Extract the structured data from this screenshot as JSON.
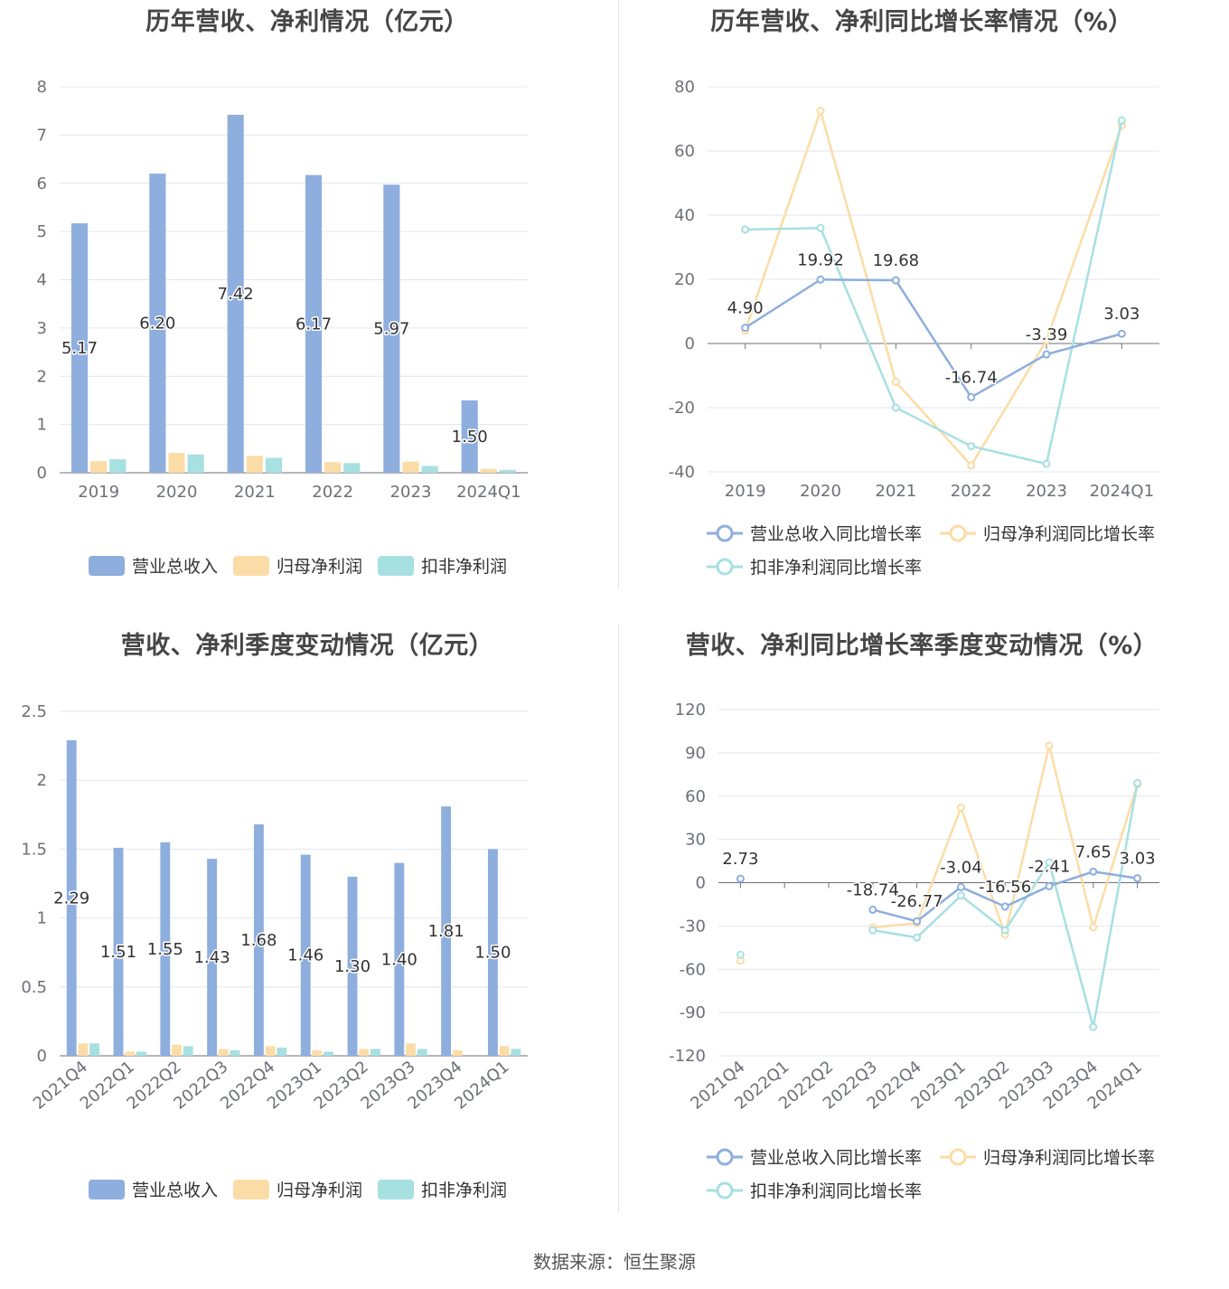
{
  "footer": "数据来源：恒生聚源",
  "colors": {
    "revenue": "#8eaedd",
    "parent": "#fcdca6",
    "deducted": "#a7e0e1"
  },
  "chart_data": [
    {
      "id": "annual_values",
      "type": "bar",
      "title": "历年营收、净利情况（亿元）",
      "categories": [
        "2019",
        "2020",
        "2021",
        "2022",
        "2023",
        "2024Q1"
      ],
      "ylim": [
        0,
        8
      ],
      "yticks": [
        0,
        1,
        2,
        3,
        4,
        5,
        6,
        7,
        8
      ],
      "grid": true,
      "legend_position": "bottom",
      "series": [
        {
          "name": "营业总收入",
          "color": "#8eaedd",
          "values": [
            5.17,
            6.2,
            7.42,
            6.17,
            5.97,
            1.5
          ],
          "labels": [
            "5.17",
            "6.20",
            "7.42",
            "6.17",
            "5.97",
            "1.50"
          ]
        },
        {
          "name": "归母净利润",
          "color": "#fcdca6",
          "values": [
            0.24,
            0.41,
            0.35,
            0.22,
            0.23,
            0.08
          ]
        },
        {
          "name": "扣非净利润",
          "color": "#a7e0e1",
          "values": [
            0.28,
            0.38,
            0.31,
            0.2,
            0.14,
            0.06
          ]
        }
      ]
    },
    {
      "id": "annual_growth",
      "type": "line",
      "title": "历年营收、净利同比增长率情况（%）",
      "categories": [
        "2019",
        "2020",
        "2021",
        "2022",
        "2023",
        "2024Q1"
      ],
      "ylim": [
        -40,
        80
      ],
      "yticks": [
        -40,
        -20,
        0,
        20,
        40,
        60,
        80
      ],
      "grid": true,
      "legend_position": "bottom",
      "series": [
        {
          "name": "营业总收入同比增长率",
          "color": "#8eaedd",
          "values": [
            4.9,
            19.92,
            19.68,
            -16.74,
            -3.39,
            3.03
          ],
          "labels": [
            "4.90",
            "19.92",
            "19.68",
            "-16.74",
            "-3.39",
            "3.03"
          ]
        },
        {
          "name": "归母净利润同比增长率",
          "color": "#fcdca6",
          "values": [
            4.0,
            72.5,
            -12.0,
            -38.0,
            1.0,
            68.0
          ]
        },
        {
          "name": "扣非净利润同比增长率",
          "color": "#a7e0e1",
          "values": [
            35.5,
            36.0,
            -20.0,
            -32.0,
            -37.5,
            69.5
          ]
        }
      ]
    },
    {
      "id": "quarterly_values",
      "type": "bar",
      "title": "营收、净利季度变动情况（亿元）",
      "categories": [
        "2021Q4",
        "2022Q1",
        "2022Q2",
        "2022Q3",
        "2022Q4",
        "2023Q1",
        "2023Q2",
        "2023Q3",
        "2023Q4",
        "2024Q1"
      ],
      "ylim": [
        0,
        2.5
      ],
      "yticks": [
        0,
        0.5,
        1,
        1.5,
        2,
        2.5
      ],
      "grid": true,
      "legend_position": "bottom",
      "series": [
        {
          "name": "营业总收入",
          "color": "#8eaedd",
          "values": [
            2.29,
            1.51,
            1.55,
            1.43,
            1.68,
            1.46,
            1.3,
            1.4,
            1.81,
            1.5
          ],
          "labels": [
            "2.29",
            "1.51",
            "1.55",
            "1.43",
            "1.68",
            "1.46",
            "1.30",
            "1.40",
            "1.81",
            "1.50"
          ]
        },
        {
          "name": "归母净利润",
          "color": "#fcdca6",
          "values": [
            0.09,
            0.03,
            0.08,
            0.05,
            0.07,
            0.04,
            0.05,
            0.09,
            0.04,
            0.07
          ]
        },
        {
          "name": "扣非净利润",
          "color": "#a7e0e1",
          "values": [
            0.09,
            0.03,
            0.07,
            0.04,
            0.06,
            0.03,
            0.05,
            0.05,
            0.0,
            0.05
          ]
        }
      ]
    },
    {
      "id": "quarterly_growth",
      "type": "line",
      "title": "营收、净利同比增长率季度变动情况（%）",
      "categories": [
        "2021Q4",
        "2022Q1",
        "2022Q2",
        "2022Q3",
        "2022Q4",
        "2023Q1",
        "2023Q2",
        "2023Q3",
        "2023Q4",
        "2024Q1"
      ],
      "ylim": [
        -120,
        120
      ],
      "yticks": [
        -120,
        -90,
        -60,
        -30,
        0,
        30,
        60,
        90,
        120
      ],
      "grid": true,
      "legend_position": "bottom",
      "series": [
        {
          "name": "营业总收入同比增长率",
          "color": "#8eaedd",
          "values": [
            2.73,
            null,
            null,
            -18.74,
            -26.77,
            -3.04,
            -16.56,
            -2.41,
            7.65,
            3.03
          ],
          "labels": [
            "2.73",
            "",
            "",
            "-18.74",
            "-26.77",
            "-3.04",
            "-16.56",
            "-2.41",
            "7.65",
            "3.03"
          ]
        },
        {
          "name": "归母净利润同比增长率",
          "color": "#fcdca6",
          "values": [
            -54,
            null,
            null,
            -31,
            -28,
            52,
            -36,
            95,
            -31,
            68
          ]
        },
        {
          "name": "扣非净利润同比增长率",
          "color": "#a7e0e1",
          "values": [
            -50,
            null,
            null,
            -33,
            -38,
            -9,
            -33,
            14,
            -100,
            69
          ]
        }
      ]
    }
  ]
}
